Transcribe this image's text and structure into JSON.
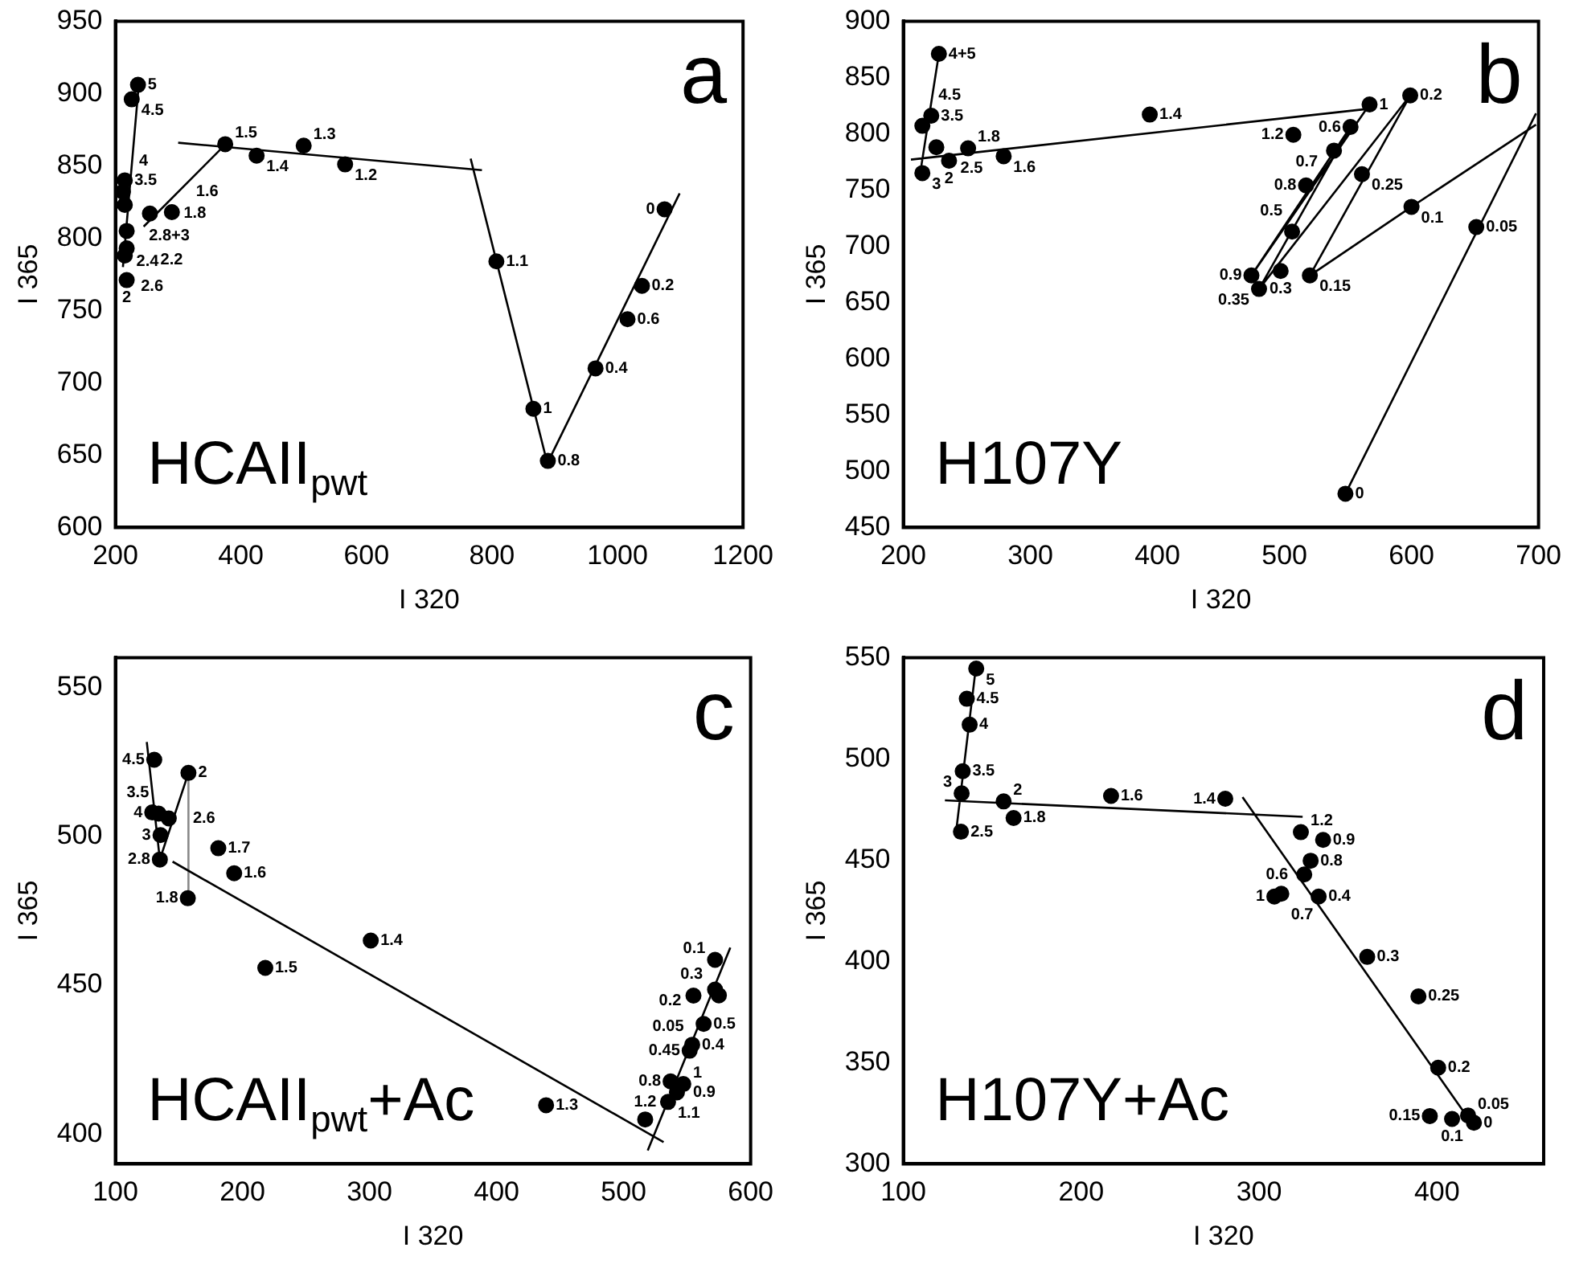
{
  "chart_data": [
    {
      "type": "scatter",
      "xlabel": "I 320",
      "ylabel": "I 365",
      "xlim": [
        200,
        1200
      ],
      "xticks": [
        200,
        400,
        600,
        800,
        1000,
        1200
      ],
      "ylim": [
        600,
        950
      ],
      "yticks": [
        600,
        650,
        700,
        750,
        800,
        850,
        900,
        950
      ],
      "legend": false,
      "grid": false,
      "annotations": [
        "a",
        "HCAII$_{pwt}$",
        {
          "text": "5",
          "x": 236,
          "y": 906
        },
        {
          "text": "4.5",
          "x": 226,
          "y": 896
        },
        {
          "text": "3.5",
          "x": 215,
          "y": 840
        },
        {
          "text": "4",
          "x": 212,
          "y": 832
        },
        {
          "text": "2.8+3",
          "x": 215,
          "y": 823
        },
        {
          "text": "2.4",
          "x": 218,
          "y": 805
        },
        {
          "text": "2.2",
          "x": 218,
          "y": 793
        },
        {
          "text": "2.6",
          "x": 215,
          "y": 788
        },
        {
          "text": "2",
          "x": 218,
          "y": 771
        },
        {
          "text": "1.8",
          "x": 255,
          "y": 817
        },
        {
          "text": "1.6",
          "x": 290,
          "y": 818
        },
        {
          "text": "1.5",
          "x": 375,
          "y": 865
        },
        {
          "text": "1.4",
          "x": 425,
          "y": 857
        },
        {
          "text": "1.3",
          "x": 500,
          "y": 864
        },
        {
          "text": "1.2",
          "x": 566,
          "y": 851
        },
        {
          "text": "1.1",
          "x": 807,
          "y": 784
        },
        {
          "text": "1",
          "x": 866,
          "y": 682
        },
        {
          "text": "0.8",
          "x": 889,
          "y": 646
        },
        {
          "text": "0.4",
          "x": 965,
          "y": 710
        },
        {
          "text": "0.6",
          "x": 1016,
          "y": 744
        },
        {
          "text": "0.2",
          "x": 1039,
          "y": 767
        },
        {
          "text": "0",
          "x": 1075,
          "y": 820
        }
      ],
      "series": [
        {
          "color": "#000000",
          "x": [
            236,
            226,
            215,
            212,
            215,
            218,
            218,
            215,
            218,
            255,
            290,
            375,
            425,
            500,
            566,
            807,
            866,
            889,
            965,
            1016,
            1039,
            1075
          ],
          "values": [
            906,
            896,
            840,
            832,
            823,
            805,
            793,
            788,
            771,
            817,
            818,
            865,
            857,
            864,
            851,
            784,
            682,
            646,
            710,
            744,
            767,
            820
          ]
        },
        {
          "type": "line",
          "color": "#000000",
          "x": [
            212,
            238,
            null,
            245,
            378,
            null,
            300,
            784,
            null,
            766,
            889,
            null,
            889,
            1099
          ],
          "values": [
            780,
            910,
            null,
            808,
            866,
            null,
            866,
            847,
            null,
            855,
            643,
            null,
            645,
            831
          ]
        }
      ]
    },
    {
      "type": "scatter",
      "xlabel": "I 320",
      "ylabel": "I 365",
      "xlim": [
        200,
        700
      ],
      "xticks": [
        200,
        300,
        400,
        500,
        600,
        700
      ],
      "ylim": [
        450,
        900
      ],
      "yticks": [
        450,
        500,
        550,
        600,
        650,
        700,
        750,
        800,
        850,
        900
      ],
      "legend": false,
      "grid": false,
      "annotations": [
        "b",
        "H107Y",
        {
          "text": "4+5",
          "x": 228,
          "y": 871
        },
        {
          "text": "3.5",
          "x": 222,
          "y": 816
        },
        {
          "text": "4.5",
          "x": 215,
          "y": 807
        },
        {
          "text": "2.5",
          "x": 226,
          "y": 788
        },
        {
          "text": "1.8",
          "x": 251,
          "y": 787
        },
        {
          "text": "2",
          "x": 236,
          "y": 776
        },
        {
          "text": "1.6",
          "x": 279,
          "y": 780
        },
        {
          "text": "3",
          "x": 215,
          "y": 765
        },
        {
          "text": "1.4",
          "x": 394,
          "y": 817
        },
        {
          "text": "1",
          "x": 567,
          "y": 826
        },
        {
          "text": "0.2",
          "x": 599,
          "y": 834
        },
        {
          "text": "1.2",
          "x": 507,
          "y": 799
        },
        {
          "text": "0.6",
          "x": 552,
          "y": 806
        },
        {
          "text": "0.7",
          "x": 539,
          "y": 785
        },
        {
          "text": "0.25",
          "x": 561,
          "y": 764
        },
        {
          "text": "0.8",
          "x": 517,
          "y": 754
        },
        {
          "text": "0.1",
          "x": 600,
          "y": 735
        },
        {
          "text": "0.05",
          "x": 651,
          "y": 717
        },
        {
          "text": "0.5",
          "x": 506,
          "y": 713
        },
        {
          "text": "0.3",
          "x": 497,
          "y": 678
        },
        {
          "text": "0.9",
          "x": 474,
          "y": 674
        },
        {
          "text": "0.15",
          "x": 520,
          "y": 674
        },
        {
          "text": "0.35",
          "x": 480,
          "y": 662
        },
        {
          "text": "0",
          "x": 548,
          "y": 480
        }
      ],
      "series": [
        {
          "color": "#000000",
          "x": [
            228,
            222,
            215,
            226,
            251,
            236,
            279,
            215,
            394,
            567,
            599,
            507,
            552,
            539,
            561,
            517,
            600,
            651,
            506,
            497,
            474,
            520,
            480,
            548
          ],
          "values": [
            871,
            816,
            807,
            788,
            787,
            776,
            780,
            765,
            817,
            826,
            834,
            799,
            806,
            785,
            764,
            754,
            735,
            717,
            713,
            678,
            674,
            674,
            662,
            480
          ]
        },
        {
          "type": "line",
          "color": "#000000",
          "x": [
            214,
            228,
            null,
            206,
            565,
            null,
            548,
            698,
            null,
            698,
            600,
            520,
            599,
            480,
            552,
            474,
            567
          ],
          "values": [
            770,
            871,
            null,
            777,
            822,
            null,
            480,
            818,
            null,
            808,
            735,
            674,
            834,
            662,
            806,
            674,
            826
          ]
        }
      ]
    },
    {
      "type": "scatter",
      "xlabel": "I 320",
      "ylabel": "I 365",
      "xlim": [
        100,
        600
      ],
      "xticks": [
        100,
        200,
        300,
        400,
        500,
        600
      ],
      "ylim": [
        390,
        560
      ],
      "yticks": [
        400,
        450,
        500,
        550
      ],
      "legend": false,
      "grid": false,
      "annotations": [
        "c",
        "HCAII$_{pwt}$+Ac",
        {
          "text": "4.5",
          "x": 130.6,
          "y": 525.7
        },
        {
          "text": "2",
          "x": 157.5,
          "y": 521.3
        },
        {
          "text": "4",
          "x": 129,
          "y": 508
        },
        {
          "text": "3.5",
          "x": 134,
          "y": 507.6
        },
        {
          "text": "2.6",
          "x": 142,
          "y": 506
        },
        {
          "text": "3",
          "x": 135.5,
          "y": 500.4
        },
        {
          "text": "2.8",
          "x": 135,
          "y": 492.2
        },
        {
          "text": "1.8",
          "x": 157,
          "y": 479.2
        },
        {
          "text": "1.7",
          "x": 181,
          "y": 496
        },
        {
          "text": "1.6",
          "x": 193.5,
          "y": 487.6
        },
        {
          "text": "1.4",
          "x": 301,
          "y": 465
        },
        {
          "text": "1.5",
          "x": 218,
          "y": 455.8
        },
        {
          "text": "1.3",
          "x": 439,
          "y": 409.7
        },
        {
          "text": "1.2",
          "x": 517,
          "y": 404.9
        },
        {
          "text": "1.1",
          "x": 535,
          "y": 410.8
        },
        {
          "text": "0.9",
          "x": 542,
          "y": 414
        },
        {
          "text": "1",
          "x": 547,
          "y": 416.8
        },
        {
          "text": "0.8",
          "x": 537,
          "y": 417.7
        },
        {
          "text": "0.4",
          "x": 554,
          "y": 430
        },
        {
          "text": "0.45",
          "x": 552,
          "y": 428
        },
        {
          "text": "0.5",
          "x": 563,
          "y": 437
        },
        {
          "text": "0.3",
          "x": 575,
          "y": 446.6
        },
        {
          "text": "0.2",
          "x": 572,
          "y": 448.5
        },
        {
          "text": "0.05",
          "x": 555,
          "y": 446.5
        },
        {
          "text": "0.1",
          "x": 572,
          "y": 458.5
        }
      ],
      "series": [
        {
          "color": "#000000",
          "x": [
            130.6,
            157.5,
            129,
            134,
            142,
            135.5,
            135,
            157,
            181,
            193.5,
            301,
            218,
            439,
            517,
            535,
            542,
            547,
            537,
            554,
            552,
            563,
            575,
            572,
            555,
            572
          ],
          "values": [
            525.7,
            521.3,
            508,
            507.6,
            506,
            500.4,
            492.2,
            479.2,
            496,
            487.6,
            465,
            455.8,
            409.7,
            404.9,
            410.8,
            414,
            416.8,
            417.7,
            430,
            428,
            437,
            446.6,
            448.5,
            446.5,
            458.5
          ]
        },
        {
          "type": "line",
          "color": "#000000",
          "x": [
            124.7,
            135,
            157.5,
            null,
            145,
            531.5,
            null,
            519,
            584
          ],
          "values": [
            531.7,
            492.2,
            521.3,
            null,
            491.5,
            397.3,
            null,
            394.5,
            462.6
          ]
        },
        {
          "type": "line",
          "color": "#888888",
          "x": [
            157.5,
            157.5
          ],
          "values": [
            521.3,
            479.2
          ]
        }
      ]
    },
    {
      "type": "scatter",
      "xlabel": "I 320",
      "ylabel": "I 365",
      "xlim": [
        100,
        460
      ],
      "xticks": [
        100,
        200,
        300,
        400
      ],
      "ylim": [
        300,
        550
      ],
      "yticks": [
        300,
        350,
        400,
        450,
        500,
        550
      ],
      "legend": false,
      "grid": false,
      "annotations": [
        "d",
        "H107Y+Ac",
        {
          "text": "5",
          "x": 141,
          "y": 544.6
        },
        {
          "text": "4.5",
          "x": 135.7,
          "y": 529.7
        },
        {
          "text": "4",
          "x": 137.3,
          "y": 516.9
        },
        {
          "text": "3.5",
          "x": 133.4,
          "y": 493.9
        },
        {
          "text": "3",
          "x": 132.8,
          "y": 483
        },
        {
          "text": "2.5",
          "x": 132.4,
          "y": 464
        },
        {
          "text": "2",
          "x": 156.4,
          "y": 479
        },
        {
          "text": "1.8",
          "x": 162,
          "y": 470.8
        },
        {
          "text": "1.6",
          "x": 216.8,
          "y": 481.7
        },
        {
          "text": "1.4",
          "x": 281,
          "y": 480.3
        },
        {
          "text": "1.2",
          "x": 323.5,
          "y": 463.8
        },
        {
          "text": "0.9",
          "x": 336,
          "y": 460
        },
        {
          "text": "0.8",
          "x": 329,
          "y": 449.7
        },
        {
          "text": "0.6",
          "x": 325.4,
          "y": 442.9
        },
        {
          "text": "1",
          "x": 308.6,
          "y": 432
        },
        {
          "text": "0.7",
          "x": 312.5,
          "y": 433.4
        },
        {
          "text": "0.4",
          "x": 333.5,
          "y": 432
        },
        {
          "text": "0.3",
          "x": 360.8,
          "y": 402.2
        },
        {
          "text": "0.25",
          "x": 389.6,
          "y": 382.7
        },
        {
          "text": "0.2",
          "x": 400.7,
          "y": 347.5
        },
        {
          "text": "0.15",
          "x": 396,
          "y": 323.6
        },
        {
          "text": "0.1",
          "x": 408.5,
          "y": 322.2
        },
        {
          "text": "0.05",
          "x": 417.5,
          "y": 323.9
        },
        {
          "text": "0",
          "x": 420.8,
          "y": 320.3
        }
      ],
      "series": [
        {
          "color": "#000000",
          "x": [
            141,
            135.7,
            137.3,
            133.4,
            132.8,
            132.4,
            156.4,
            162,
            216.8,
            281,
            323.5,
            336,
            329,
            325.4,
            308.6,
            312.5,
            333.5,
            360.8,
            389.6,
            400.7,
            396,
            408.5,
            417.5,
            420.8
          ],
          "values": [
            544.6,
            529.7,
            516.9,
            493.9,
            483,
            464,
            479,
            470.8,
            481.7,
            480.3,
            463.8,
            460,
            449.7,
            442.9,
            432,
            433.4,
            432,
            402.2,
            382.7,
            347.5,
            323.6,
            322.2,
            323.9,
            320.3
          ]
        },
        {
          "type": "line",
          "color": "#000000",
          "x": [
            129.5,
            141,
            null,
            123.4,
            324.5,
            null,
            290.7,
            420
          ],
          "values": [
            462.7,
            546.7,
            null,
            479.5,
            471.4,
            null,
            481.1,
            319.5
          ]
        }
      ]
    }
  ]
}
